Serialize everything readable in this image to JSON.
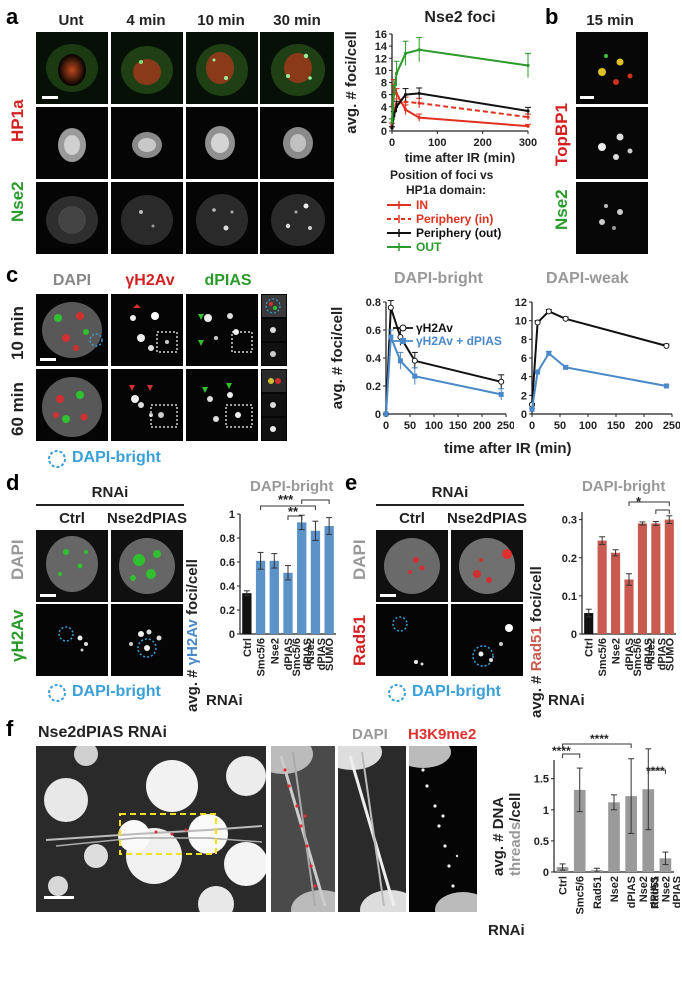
{
  "panel_a": {
    "letter": "a",
    "columns": [
      "Unt",
      "4 min",
      "10 min",
      "30 min"
    ],
    "row_hp1a": "HP1a",
    "row_nse2": "Nse2",
    "chart_title": "Nse2 foci",
    "legend_title_1": "Position of foci vs",
    "legend_title_2": "HP1a domain:",
    "legend": [
      {
        "label": "IN",
        "color": "#e03020"
      },
      {
        "label": "Periphery (in)",
        "color": "#e03020"
      },
      {
        "label": "Periphery (out)",
        "color": "#111111"
      },
      {
        "label": "OUT",
        "color": "#2a9a2a"
      }
    ]
  },
  "panel_b": {
    "letter": "b",
    "title": "15 min",
    "row_topbp1": "TopBP1",
    "row_nse2": "Nse2"
  },
  "panel_c": {
    "letter": "c",
    "columns": [
      "DAPI",
      "γH2Av",
      "dPIAS"
    ],
    "rows": [
      "10 min",
      "60 min"
    ],
    "key": "DAPI-bright",
    "chart_left_title": "DAPI-bright",
    "chart_right_title": "DAPI-weak",
    "legend": [
      "γH2Av",
      "γH2Av + dPIAS"
    ],
    "ylabel": "avg. # foci/cell",
    "xlabel": "time after IR (min)"
  },
  "panel_d": {
    "letter": "d",
    "rnai": "RNAi",
    "columns": [
      "Ctrl",
      "Nse2dPIAS"
    ],
    "row_dapi": "DAPI",
    "row_h2av": "γH2Av",
    "key": "DAPI-bright",
    "chart_title": "DAPI-bright",
    "ylabel_prefix": "avg. #",
    "ylabel_colored": "γH2Av",
    "ylabel_suffix": "foci/cell",
    "sig1": "***",
    "sig2": "**",
    "rnai_label": "RNAi"
  },
  "panel_e": {
    "letter": "e",
    "rnai": "RNAi",
    "columns": [
      "Ctrl",
      "Nse2dPIAS"
    ],
    "row_dapi": "DAPI",
    "row_rad51": "Rad51",
    "key": "DAPI-bright",
    "chart_title": "DAPI-bright",
    "ylabel_prefix": "avg. #",
    "ylabel_colored": "Rad51",
    "ylabel_suffix": "foci/cell",
    "sig1": "*",
    "rnai_label": "RNAi"
  },
  "panel_f": {
    "letter": "f",
    "title": "Nse2dPIAS RNAi",
    "col_dapi": "DAPI",
    "col_h3k9": "H3K9me2",
    "ylabel_1": "avg. # DNA",
    "ylabel_2": "threads",
    "ylabel_3": "/cell",
    "sig_all": "****",
    "sig_a": "****",
    "sig_b": "****",
    "rnai_label": "RNAi"
  },
  "chart_data": [
    {
      "id": "a-nse2-foci",
      "type": "line",
      "title": "Nse2 foci",
      "xlabel": "time after IR (min)",
      "ylabel": "avg. # foci/cell",
      "xlim": [
        0,
        300
      ],
      "ylim": [
        0,
        16
      ],
      "xticks": [
        0,
        100,
        200,
        300
      ],
      "yticks": [
        0,
        2,
        4,
        6,
        8,
        10,
        12,
        14,
        16
      ],
      "x": [
        0,
        4,
        10,
        30,
        60,
        300
      ],
      "series": [
        {
          "name": "IN",
          "color": "#e03020",
          "dash": false,
          "values": [
            1.0,
            7.5,
            6.2,
            3.5,
            2.2,
            0.8
          ],
          "errors": [
            0.3,
            1.0,
            0.8,
            0.8,
            0.6,
            0.3
          ]
        },
        {
          "name": "Periphery (in)",
          "color": "#e03020",
          "dash": true,
          "values": [
            0.5,
            3.5,
            4.5,
            4.8,
            4.6,
            2.3
          ],
          "errors": [
            0.2,
            0.8,
            0.8,
            0.8,
            0.8,
            0.5
          ]
        },
        {
          "name": "Periphery (out)",
          "color": "#111111",
          "dash": false,
          "values": [
            0.5,
            2.5,
            4.0,
            6.0,
            6.2,
            3.3
          ],
          "errors": [
            0.2,
            0.7,
            0.9,
            1.0,
            0.9,
            0.6
          ]
        },
        {
          "name": "OUT",
          "color": "#2a9a2a",
          "dash": false,
          "values": [
            1.5,
            6.0,
            9.5,
            12.8,
            13.4,
            10.8
          ],
          "errors": [
            0.5,
            1.5,
            2.0,
            2.0,
            2.0,
            2.0
          ]
        }
      ]
    },
    {
      "id": "c-dapi-bright",
      "type": "line",
      "title": "DAPI-bright",
      "xlabel": "time after IR (min)",
      "ylabel": "avg. # foci/cell",
      "xlim": [
        0,
        250
      ],
      "ylim": [
        0,
        0.8
      ],
      "xticks": [
        0,
        50,
        100,
        150,
        200,
        250
      ],
      "yticks": [
        0,
        0.2,
        0.4,
        0.6,
        0.8
      ],
      "x": [
        0,
        10,
        30,
        60,
        240
      ],
      "series": [
        {
          "name": "γH2Av",
          "color": "#111111",
          "values": [
            0.0,
            0.76,
            0.55,
            0.38,
            0.23
          ],
          "errors": [
            0.0,
            0.05,
            0.06,
            0.06,
            0.05
          ]
        },
        {
          "name": "γH2Av + dPIAS",
          "color": "#4a88c8",
          "values": [
            0.0,
            0.55,
            0.38,
            0.27,
            0.14
          ],
          "errors": [
            0.0,
            0.05,
            0.06,
            0.06,
            0.04
          ]
        }
      ]
    },
    {
      "id": "c-dapi-weak",
      "type": "line",
      "title": "DAPI-weak",
      "xlabel": "time after IR (min)",
      "ylabel": "",
      "xlim": [
        0,
        250
      ],
      "ylim": [
        0,
        12
      ],
      "xticks": [
        0,
        50,
        100,
        150,
        200,
        250
      ],
      "yticks": [
        0,
        2,
        4,
        6,
        8,
        10,
        12
      ],
      "x": [
        0,
        10,
        30,
        60,
        240
      ],
      "series": [
        {
          "name": "γH2Av",
          "color": "#111111",
          "values": [
            1.0,
            9.8,
            11.0,
            10.2,
            7.3
          ],
          "errors": [
            0.1,
            0.2,
            0.2,
            0.2,
            0.2
          ]
        },
        {
          "name": "γH2Av + dPIAS",
          "color": "#4a88c8",
          "values": [
            0.5,
            4.5,
            6.5,
            5.0,
            3.0
          ],
          "errors": [
            0.1,
            0.2,
            0.2,
            0.2,
            0.1
          ]
        }
      ]
    },
    {
      "id": "d-h2av-bars",
      "type": "bar",
      "title": "DAPI-bright",
      "ylabel": "avg. # γH2Av foci/cell",
      "ylim": [
        0,
        1
      ],
      "yticks": [
        0,
        0.2,
        0.4,
        0.6,
        0.8,
        1
      ],
      "categories": [
        "Ctrl",
        "Smc5/6",
        "Nse2",
        "dPIAS",
        "Smc5/6 dPIAS",
        "Nse2 dPIAS",
        "SUMO"
      ],
      "values": [
        0.34,
        0.61,
        0.61,
        0.51,
        0.93,
        0.86,
        0.9
      ],
      "errors": [
        0.02,
        0.07,
        0.06,
        0.06,
        0.06,
        0.08,
        0.07
      ],
      "colors": [
        "#111111",
        "#5b92c8",
        "#5b92c8",
        "#5b92c8",
        "#5b92c8",
        "#5b92c8",
        "#5b92c8"
      ]
    },
    {
      "id": "e-rad51-bars",
      "type": "bar",
      "title": "DAPI-bright",
      "ylabel": "avg. # Rad51 foci/cell",
      "ylim": [
        0,
        0.32
      ],
      "yticks": [
        0,
        0.1,
        0.2,
        0.3
      ],
      "categories": [
        "Ctrl",
        "Smc5/6",
        "Nse2",
        "dPIAS",
        "Smc5/6 dPIAS",
        "Nse2 dPIAS",
        "SUMO"
      ],
      "values": [
        0.055,
        0.245,
        0.213,
        0.143,
        0.29,
        0.29,
        0.3
      ],
      "errors": [
        0.01,
        0.01,
        0.008,
        0.015,
        0.004,
        0.005,
        0.01
      ],
      "colors": [
        "#111111",
        "#c85a50",
        "#c85a50",
        "#c85a50",
        "#c85a50",
        "#c85a50",
        "#c85a50"
      ]
    },
    {
      "id": "f-threads-bars",
      "type": "bar",
      "ylabel": "avg. # DNA threads/cell",
      "ylim": [
        0,
        1.8
      ],
      "yticks": [
        0,
        0.5,
        1,
        1.5
      ],
      "categories": [
        "Ctrl",
        "Smc5/6",
        "Rad51",
        "Nse2",
        "dPIAS",
        "Nse2 dPIAS",
        "Rad51 Nse2 dPIAS"
      ],
      "values": [
        0.08,
        1.32,
        0.03,
        1.12,
        1.22,
        1.33,
        0.22
      ],
      "errors": [
        0.05,
        0.35,
        0.03,
        0.12,
        0.6,
        0.65,
        0.1
      ],
      "colors": [
        "#9a9a9a",
        "#9a9a9a",
        "#9a9a9a",
        "#9a9a9a",
        "#9a9a9a",
        "#9a9a9a",
        "#9a9a9a"
      ]
    }
  ]
}
